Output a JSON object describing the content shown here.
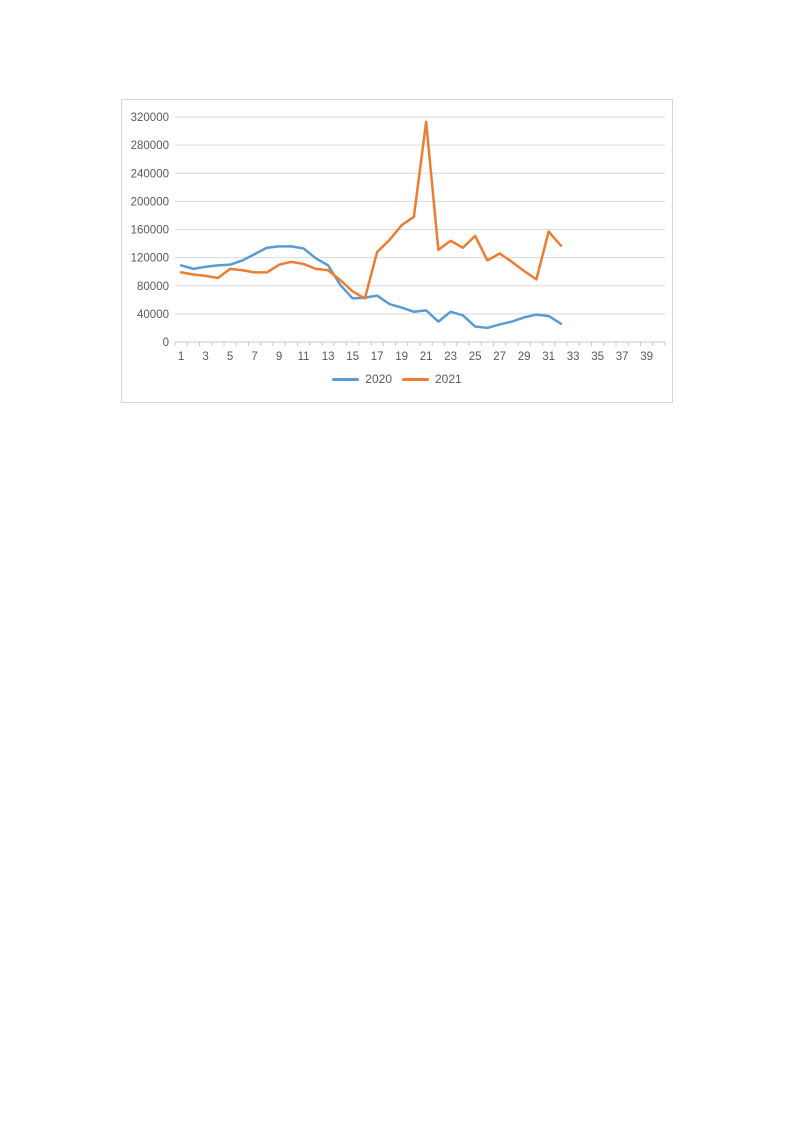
{
  "page": {
    "background_color": "#ffffff"
  },
  "chart": {
    "frame_border_color": "#d6d6d6",
    "background_color": "#ffffff",
    "gridline_color": "#d9d9d9",
    "axis_line_color": "#c8c8c8",
    "tick_color": "#c8c8c8",
    "label_color": "#595959"
  },
  "chart_data": {
    "type": "line",
    "title": "",
    "xlabel": "",
    "ylabel": "",
    "grid": true,
    "categories": [
      1,
      2,
      3,
      4,
      5,
      6,
      7,
      8,
      9,
      10,
      11,
      12,
      13,
      14,
      15,
      16,
      17,
      18,
      19,
      20,
      21,
      22,
      23,
      24,
      25,
      26,
      27,
      28,
      29,
      30,
      31,
      32
    ],
    "x_axis": {
      "tick_labels": [
        "1",
        "3",
        "5",
        "7",
        "9",
        "11",
        "13",
        "15",
        "17",
        "19",
        "21",
        "23",
        "25",
        "27",
        "29",
        "31",
        "33",
        "35",
        "37",
        "39"
      ],
      "total_categories": 40
    },
    "y_axis": {
      "min": 0,
      "max": 320000,
      "ticks": [
        0,
        40000,
        80000,
        120000,
        160000,
        200000,
        240000,
        280000,
        320000
      ],
      "tick_labels": [
        "0",
        "40000",
        "80000",
        "120000",
        "160000",
        "200000",
        "240000",
        "280000",
        "320000"
      ]
    },
    "series": [
      {
        "name": "2020",
        "color": "#5B9BD5",
        "values": [
          109000,
          104000,
          107000,
          109000,
          110000,
          116000,
          125000,
          134000,
          136000,
          136000,
          133000,
          119000,
          109000,
          81000,
          62000,
          63000,
          66000,
          54000,
          49000,
          43000,
          45000,
          29000,
          43000,
          38000,
          22000,
          20000,
          25000,
          29000,
          35000,
          39000,
          37000,
          26000
        ]
      },
      {
        "name": "2021",
        "color": "#ED7D31",
        "values": [
          99000,
          96000,
          94000,
          91000,
          104000,
          102000,
          99000,
          99000,
          110000,
          114000,
          111000,
          104000,
          102000,
          88000,
          72000,
          62000,
          128000,
          145000,
          166000,
          178000,
          313000,
          131000,
          144000,
          134000,
          151000,
          116000,
          126000,
          114000,
          101000,
          89000,
          157000,
          137000
        ]
      }
    ],
    "legend": {
      "position": "bottom",
      "entries": [
        "2020",
        "2021"
      ]
    }
  }
}
